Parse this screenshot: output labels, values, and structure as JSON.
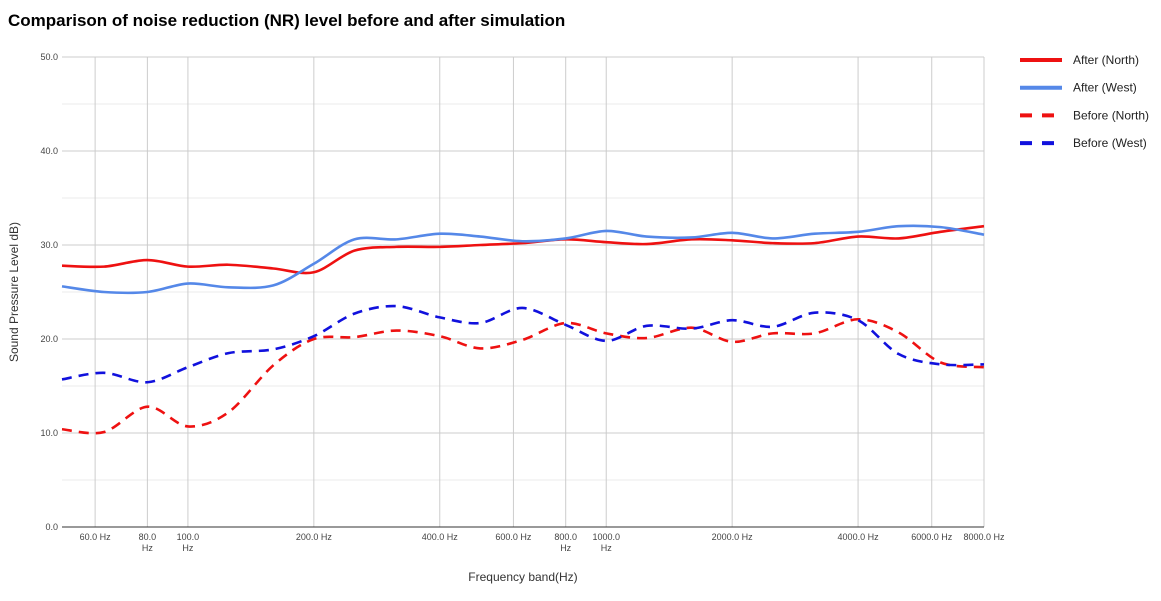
{
  "chart_data": {
    "type": "line",
    "title": "Comparison of noise reduction (NR) level before and after simulation",
    "xlabel": "Frequency band(Hz)",
    "ylabel": "Sound Pressure Level dB)",
    "ylim": [
      0,
      50
    ],
    "x_scale": "log",
    "xlim": [
      50,
      8000
    ],
    "yticks": [
      "0.0",
      "10.0",
      "20.0",
      "30.0",
      "40.0",
      "50.0"
    ],
    "xticks": [
      {
        "value": 60,
        "label": "60.0 Hz"
      },
      {
        "value": 80,
        "label": "80.0 Hz"
      },
      {
        "value": 100,
        "label": "100.0 Hz"
      },
      {
        "value": 200,
        "label": "200.0 Hz"
      },
      {
        "value": 400,
        "label": "400.0 Hz"
      },
      {
        "value": 600,
        "label": "600.0 Hz"
      },
      {
        "value": 800,
        "label": "800.0 Hz"
      },
      {
        "value": 1000,
        "label": "1000.0 Hz"
      },
      {
        "value": 2000,
        "label": "2000.0 Hz"
      },
      {
        "value": 4000,
        "label": "4000.0 Hz"
      },
      {
        "value": 6000,
        "label": "6000.0 Hz"
      },
      {
        "value": 8000,
        "label": "8000.0 Hz"
      }
    ],
    "x": [
      50,
      63,
      80,
      100,
      125,
      160,
      200,
      250,
      315,
      400,
      500,
      630,
      800,
      1000,
      1250,
      1600,
      2000,
      2500,
      3150,
      4000,
      5000,
      6300,
      8000
    ],
    "grid": true,
    "legend_position": "right",
    "series": [
      {
        "name": "After (North)",
        "color": "#ee1111",
        "dash": false,
        "values": [
          27.8,
          27.7,
          28.4,
          27.7,
          27.9,
          27.5,
          27.1,
          29.4,
          29.8,
          29.8,
          30.0,
          30.2,
          30.6,
          30.3,
          30.1,
          30.6,
          30.5,
          30.2,
          30.2,
          30.9,
          30.7,
          31.4,
          32.0
        ]
      },
      {
        "name": "After (West)",
        "color": "#5588e8",
        "dash": false,
        "values": [
          25.6,
          25.0,
          25.0,
          25.9,
          25.5,
          25.7,
          28.0,
          30.6,
          30.6,
          31.2,
          30.9,
          30.4,
          30.7,
          31.5,
          30.9,
          30.8,
          31.3,
          30.7,
          31.2,
          31.4,
          32.0,
          31.9,
          31.1
        ]
      },
      {
        "name": "Before (North)",
        "color": "#ee1111",
        "dash": true,
        "values": [
          10.4,
          10.1,
          12.8,
          10.7,
          12.2,
          17.2,
          20.0,
          20.2,
          20.9,
          20.3,
          19.0,
          19.9,
          21.7,
          20.6,
          20.1,
          21.2,
          19.7,
          20.6,
          20.6,
          22.1,
          20.7,
          17.5,
          17.0
        ]
      },
      {
        "name": "Before (West)",
        "color": "#1111dd",
        "dash": true,
        "values": [
          15.7,
          16.4,
          15.4,
          17.0,
          18.5,
          18.9,
          20.3,
          22.7,
          23.5,
          22.3,
          21.7,
          23.3,
          21.5,
          19.8,
          21.4,
          21.1,
          22.0,
          21.3,
          22.8,
          22.0,
          18.4,
          17.3,
          17.3
        ]
      }
    ]
  }
}
